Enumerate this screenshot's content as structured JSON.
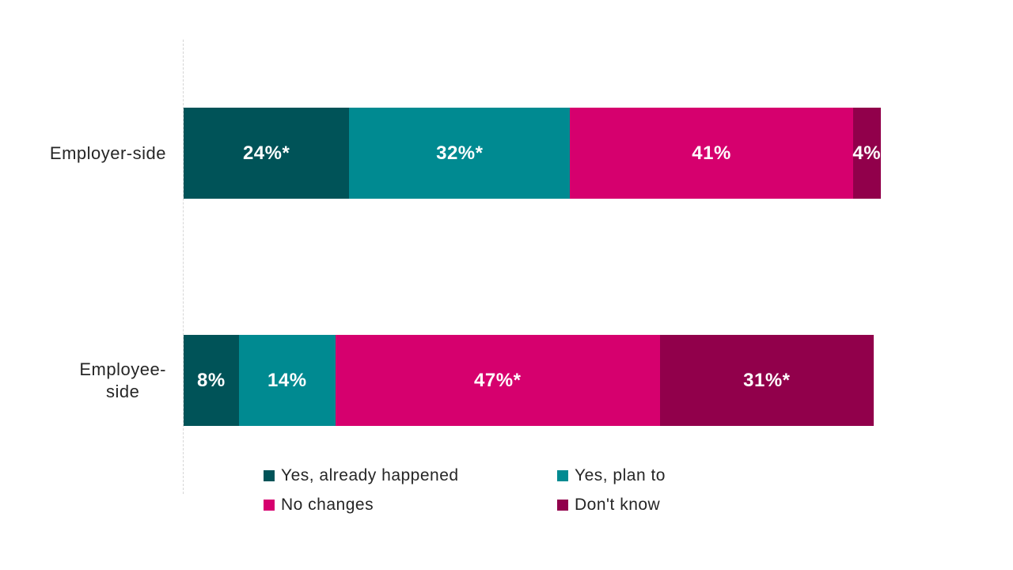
{
  "chart_data": {
    "type": "bar",
    "orientation": "horizontal_stacked",
    "categories": [
      "Employer-side",
      "Employee-side"
    ],
    "category_label_lines": [
      [
        "Employer-side"
      ],
      [
        "Employee-",
        "side"
      ]
    ],
    "series": [
      {
        "name": "Yes, already happened",
        "color": "#005358",
        "values": [
          24,
          8
        ],
        "data_labels": [
          "24%*",
          "8%"
        ]
      },
      {
        "name": "Yes, plan to",
        "color": "#008A91",
        "values": [
          32,
          14
        ],
        "data_labels": [
          "32%*",
          "14%"
        ]
      },
      {
        "name": "No changes",
        "color": "#D6006E",
        "values": [
          41,
          47
        ],
        "data_labels": [
          "41%",
          "47%*"
        ]
      },
      {
        "name": "Don't know",
        "color": "#91004B",
        "values": [
          4,
          31
        ],
        "data_labels": [
          "4%",
          "31%*"
        ]
      }
    ],
    "xlim": [
      0,
      100
    ],
    "gridlines": false,
    "legend_position": "bottom",
    "data_label_color": "#FFFFFF",
    "axis_line_color": "#D6D6D6",
    "text_color": "#262626"
  }
}
